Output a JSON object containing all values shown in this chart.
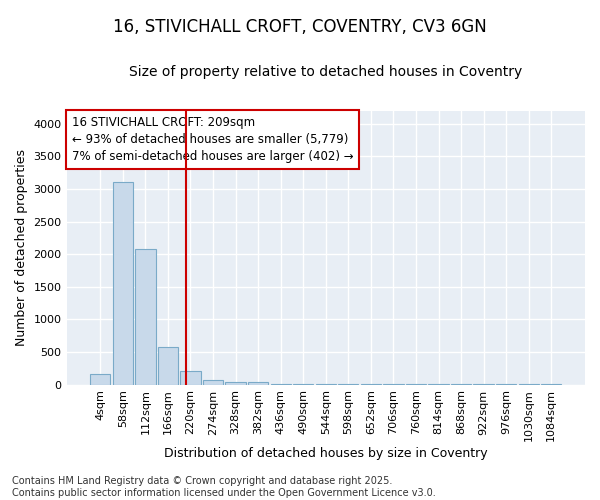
{
  "title_line1": "16, STIVICHALL CROFT, COVENTRY, CV3 6GN",
  "title_line2": "Size of property relative to detached houses in Coventry",
  "xlabel": "Distribution of detached houses by size in Coventry",
  "ylabel": "Number of detached properties",
  "bar_labels": [
    "4sqm",
    "58sqm",
    "112sqm",
    "166sqm",
    "220sqm",
    "274sqm",
    "328sqm",
    "382sqm",
    "436sqm",
    "490sqm",
    "544sqm",
    "598sqm",
    "652sqm",
    "706sqm",
    "760sqm",
    "814sqm",
    "868sqm",
    "922sqm",
    "976sqm",
    "1030sqm",
    "1084sqm"
  ],
  "bar_values": [
    155,
    3100,
    2080,
    580,
    210,
    75,
    45,
    35,
    5,
    5,
    5,
    5,
    5,
    5,
    5,
    5,
    5,
    5,
    5,
    5,
    5
  ],
  "bar_color": "#c8d9ea",
  "bar_edge_color": "#7aaac8",
  "vline_color": "#cc0000",
  "annotation_text": "16 STIVICHALL CROFT: 209sqm\n← 93% of detached houses are smaller (5,779)\n7% of semi-detached houses are larger (402) →",
  "annotation_box_color": "#ffffff",
  "annotation_box_edge": "#cc0000",
  "ylim": [
    0,
    4200
  ],
  "yticks": [
    0,
    500,
    1000,
    1500,
    2000,
    2500,
    3000,
    3500,
    4000
  ],
  "footer_line1": "Contains HM Land Registry data © Crown copyright and database right 2025.",
  "footer_line2": "Contains public sector information licensed under the Open Government Licence v3.0.",
  "bg_color": "#ffffff",
  "plot_bg_color": "#e8eef5",
  "grid_color": "#ffffff",
  "title_fontsize": 12,
  "subtitle_fontsize": 10,
  "axis_label_fontsize": 9,
  "tick_fontsize": 8,
  "footer_fontsize": 7,
  "annotation_fontsize": 8.5
}
